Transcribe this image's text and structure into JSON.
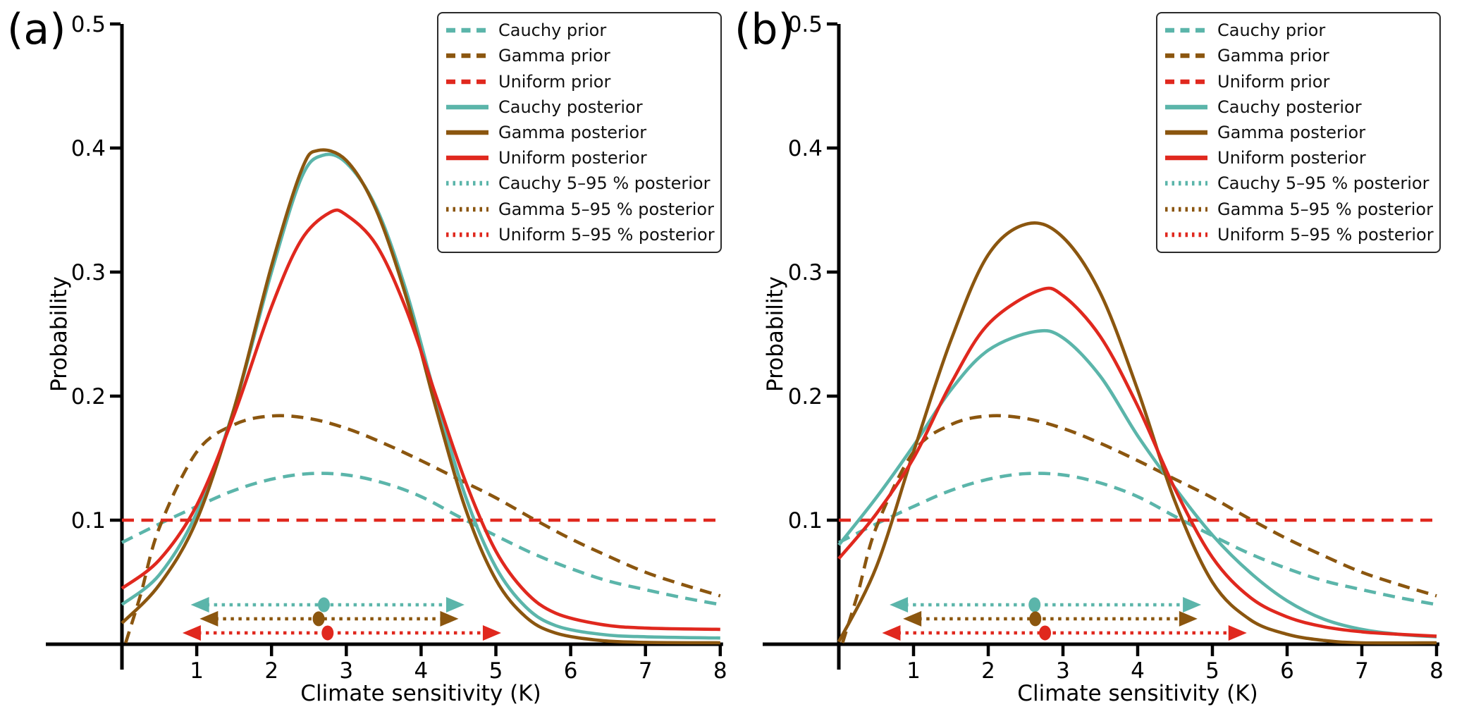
{
  "figure": {
    "panels": [
      {
        "letter": "(a)",
        "xlabel": "Climate sensitivity (K)",
        "ylabel": "Probability"
      },
      {
        "letter": "(b)",
        "xlabel": "Climate sensitivity (K)",
        "ylabel": "Probability"
      }
    ]
  },
  "colors": {
    "cauchy": "#5bb5aa",
    "gamma": "#8b560f",
    "uniform": "#e0281e",
    "axis": "#000000",
    "text": "#000000",
    "legend_border": "#2b2b2b"
  },
  "legend": {
    "entries": [
      {
        "label": "Cauchy prior",
        "color": "cauchy",
        "style": "dashed"
      },
      {
        "label": "Gamma prior",
        "color": "gamma",
        "style": "dashed"
      },
      {
        "label": "Uniform prior",
        "color": "uniform",
        "style": "dashed"
      },
      {
        "label": "Cauchy posterior",
        "color": "cauchy",
        "style": "solid"
      },
      {
        "label": "Gamma posterior",
        "color": "gamma",
        "style": "solid"
      },
      {
        "label": "Uniform posterior",
        "color": "uniform",
        "style": "solid"
      },
      {
        "label": "Cauchy 5–95 % posterior",
        "color": "cauchy",
        "style": "dotted"
      },
      {
        "label": "Gamma 5–95 % posterior",
        "color": "gamma",
        "style": "dotted"
      },
      {
        "label": "Uniform 5–95 % posterior",
        "color": "uniform",
        "style": "dotted"
      }
    ]
  },
  "chart_data": [
    {
      "type": "line",
      "panel": "a",
      "title": "",
      "xlabel": "Climate sensitivity (K)",
      "ylabel": "Probability",
      "xlim": [
        0,
        8
      ],
      "ylim": [
        0,
        0.5
      ],
      "x_ticks": [
        1,
        2,
        3,
        4,
        5,
        6,
        7,
        8
      ],
      "y_ticks": [
        0.1,
        0.2,
        0.3,
        0.4,
        0.5
      ],
      "grid": false,
      "legend_position": "upper right",
      "series": [
        {
          "name": "Cauchy prior",
          "color": "cauchy",
          "style": "dashed",
          "x": [
            0,
            0.5,
            1,
            1.5,
            2,
            2.5,
            3,
            3.5,
            4,
            4.5,
            5,
            5.5,
            6,
            6.5,
            7,
            7.5,
            8
          ],
          "y": [
            0.082,
            0.097,
            0.111,
            0.124,
            0.133,
            0.1375,
            0.1365,
            0.13,
            0.119,
            0.103,
            0.0875,
            0.073,
            0.061,
            0.051,
            0.044,
            0.0375,
            0.032
          ]
        },
        {
          "name": "Gamma prior",
          "color": "gamma",
          "style": "dashed",
          "x": [
            0.05,
            0.25,
            0.5,
            1,
            1.5,
            2,
            2.5,
            3,
            3.5,
            4,
            4.5,
            5,
            5.5,
            6,
            6.5,
            7,
            7.5,
            8
          ],
          "y": [
            0,
            0.04,
            0.094,
            0.155,
            0.177,
            0.184,
            0.182,
            0.174,
            0.162,
            0.148,
            0.133,
            0.118,
            0.101,
            0.085,
            0.071,
            0.058,
            0.048,
            0.039
          ]
        },
        {
          "name": "Uniform prior",
          "color": "uniform",
          "style": "dashed",
          "x": [
            0,
            8
          ],
          "y": [
            0.1,
            0.1
          ]
        },
        {
          "name": "Cauchy posterior",
          "color": "cauchy",
          "style": "solid",
          "x": [
            0,
            0.5,
            1,
            1.5,
            2,
            2.4,
            2.68,
            3,
            3.4,
            3.8,
            4.2,
            4.6,
            5,
            5.4,
            5.8,
            6.4,
            7,
            8
          ],
          "y": [
            0.032,
            0.056,
            0.106,
            0.19,
            0.3,
            0.376,
            0.394,
            0.388,
            0.352,
            0.285,
            0.198,
            0.118,
            0.062,
            0.03,
            0.015,
            0.008,
            0.006,
            0.005
          ]
        },
        {
          "name": "Gamma posterior",
          "color": "gamma",
          "style": "solid",
          "x": [
            0,
            0.5,
            1,
            1.5,
            2,
            2.4,
            2.62,
            3,
            3.4,
            3.8,
            4.2,
            4.6,
            5,
            5.4,
            5.8,
            6.4,
            7,
            8
          ],
          "y": [
            0.017,
            0.048,
            0.1,
            0.19,
            0.305,
            0.382,
            0.398,
            0.39,
            0.35,
            0.28,
            0.19,
            0.108,
            0.052,
            0.022,
            0.009,
            0.003,
            0.0015,
            0.001
          ]
        },
        {
          "name": "Uniform posterior",
          "color": "uniform",
          "style": "solid",
          "x": [
            0,
            0.5,
            1,
            1.5,
            2,
            2.4,
            2.78,
            3,
            3.4,
            3.8,
            4.2,
            4.6,
            5,
            5.4,
            5.8,
            6.4,
            7,
            8
          ],
          "y": [
            0.045,
            0.068,
            0.112,
            0.185,
            0.272,
            0.326,
            0.348,
            0.346,
            0.322,
            0.27,
            0.2,
            0.13,
            0.075,
            0.042,
            0.025,
            0.016,
            0.013,
            0.012
          ]
        }
      ],
      "credible_intervals": [
        {
          "name": "Cauchy 5–95 % posterior",
          "color": "cauchy",
          "from": 0.92,
          "to": 4.58,
          "median": 2.7,
          "y": 0.0318
        },
        {
          "name": "Gamma 5–95 % posterior",
          "color": "gamma",
          "from": 1.04,
          "to": 4.5,
          "median": 2.63,
          "y": 0.0205
        },
        {
          "name": "Uniform 5–95 % posterior",
          "color": "uniform",
          "from": 0.81,
          "to": 5.07,
          "median": 2.75,
          "y": 0.0091
        }
      ]
    },
    {
      "type": "line",
      "panel": "b",
      "title": "",
      "xlabel": "Climate sensitivity (K)",
      "ylabel": "Probability",
      "xlim": [
        0,
        8
      ],
      "ylim": [
        0,
        0.5
      ],
      "x_ticks": [
        1,
        2,
        3,
        4,
        5,
        6,
        7,
        8
      ],
      "y_ticks": [
        0.1,
        0.2,
        0.3,
        0.4,
        0.5
      ],
      "grid": false,
      "legend_position": "upper right",
      "series": [
        {
          "name": "Cauchy prior",
          "color": "cauchy",
          "style": "dashed",
          "x": [
            0,
            0.5,
            1,
            1.5,
            2,
            2.5,
            3,
            3.5,
            4,
            4.5,
            5,
            5.5,
            6,
            6.5,
            7,
            7.5,
            8
          ],
          "y": [
            0.082,
            0.097,
            0.111,
            0.124,
            0.133,
            0.1375,
            0.1365,
            0.13,
            0.119,
            0.103,
            0.0875,
            0.073,
            0.061,
            0.051,
            0.044,
            0.0375,
            0.032
          ]
        },
        {
          "name": "Gamma prior",
          "color": "gamma",
          "style": "dashed",
          "x": [
            0.05,
            0.25,
            0.5,
            1,
            1.5,
            2,
            2.5,
            3,
            3.5,
            4,
            4.5,
            5,
            5.5,
            6,
            6.5,
            7,
            7.5,
            8
          ],
          "y": [
            0,
            0.04,
            0.094,
            0.155,
            0.177,
            0.184,
            0.182,
            0.174,
            0.162,
            0.148,
            0.133,
            0.118,
            0.101,
            0.085,
            0.071,
            0.058,
            0.048,
            0.039
          ]
        },
        {
          "name": "Uniform prior",
          "color": "uniform",
          "style": "dashed",
          "x": [
            0,
            8
          ],
          "y": [
            0.1,
            0.1
          ]
        },
        {
          "name": "Cauchy posterior",
          "color": "cauchy",
          "style": "solid",
          "x": [
            0,
            0.5,
            1,
            1.5,
            2,
            2.62,
            3,
            3.5,
            4,
            4.5,
            5,
            5.5,
            6,
            6.5,
            7,
            7.5,
            8
          ],
          "y": [
            0.08,
            0.118,
            0.16,
            0.205,
            0.237,
            0.252,
            0.247,
            0.216,
            0.168,
            0.126,
            0.088,
            0.058,
            0.035,
            0.02,
            0.012,
            0.008,
            0.006
          ]
        },
        {
          "name": "Gamma posterior",
          "color": "gamma",
          "style": "solid",
          "x": [
            0,
            0.5,
            1,
            1.5,
            2,
            2.53,
            3,
            3.5,
            4,
            4.5,
            5,
            5.5,
            6,
            6.5,
            7,
            8
          ],
          "y": [
            0.002,
            0.062,
            0.155,
            0.245,
            0.314,
            0.339,
            0.328,
            0.283,
            0.205,
            0.115,
            0.05,
            0.02,
            0.008,
            0.003,
            0.001,
            0.0005
          ]
        },
        {
          "name": "Uniform posterior",
          "color": "uniform",
          "style": "solid",
          "x": [
            0,
            0.5,
            1,
            1.5,
            2,
            2.67,
            3,
            3.5,
            4,
            4.5,
            5,
            5.5,
            6,
            6.5,
            7,
            7.5,
            8
          ],
          "y": [
            0.069,
            0.105,
            0.15,
            0.21,
            0.258,
            0.285,
            0.281,
            0.248,
            0.192,
            0.125,
            0.07,
            0.038,
            0.022,
            0.014,
            0.01,
            0.008,
            0.0065
          ]
        }
      ],
      "credible_intervals": [
        {
          "name": "Cauchy 5–95 % posterior",
          "color": "cauchy",
          "from": 0.68,
          "to": 4.85,
          "median": 2.62,
          "y": 0.0318
        },
        {
          "name": "Gamma 5–95 % posterior",
          "color": "gamma",
          "from": 0.86,
          "to": 4.8,
          "median": 2.63,
          "y": 0.0205
        },
        {
          "name": "Uniform 5–95 % posterior",
          "color": "uniform",
          "from": 0.58,
          "to": 5.46,
          "median": 2.76,
          "y": 0.0091
        }
      ]
    }
  ]
}
